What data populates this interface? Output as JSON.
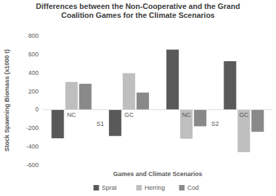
{
  "chart_data": {
    "type": "bar",
    "title": "Differences between the Non-Cooperative and the Grand\nCoalition Games for the Climate Scenarios",
    "y_label": "Stock Spawning Biomass (x1000 t)",
    "x_label": "Games and Climate Scenarios",
    "categories": [
      "NC",
      "GC",
      "NC",
      "GC"
    ],
    "groups": [
      "S1",
      "S1",
      "S2",
      "S2"
    ],
    "series": [
      {
        "name": "Sprat",
        "color": "#595959",
        "values": [
          -310,
          -285,
          650,
          525
        ]
      },
      {
        "name": "Herring",
        "color": "#bfbfbf",
        "values": [
          300,
          395,
          -315,
          -460
        ]
      },
      {
        "name": "Cod",
        "color": "#898989",
        "values": [
          280,
          185,
          -180,
          -240
        ]
      }
    ],
    "ylim": [
      -600,
      800
    ],
    "yticks": [
      -600,
      -400,
      -200,
      0,
      200,
      400,
      600,
      800
    ],
    "grid": false,
    "legend": "bottom"
  }
}
